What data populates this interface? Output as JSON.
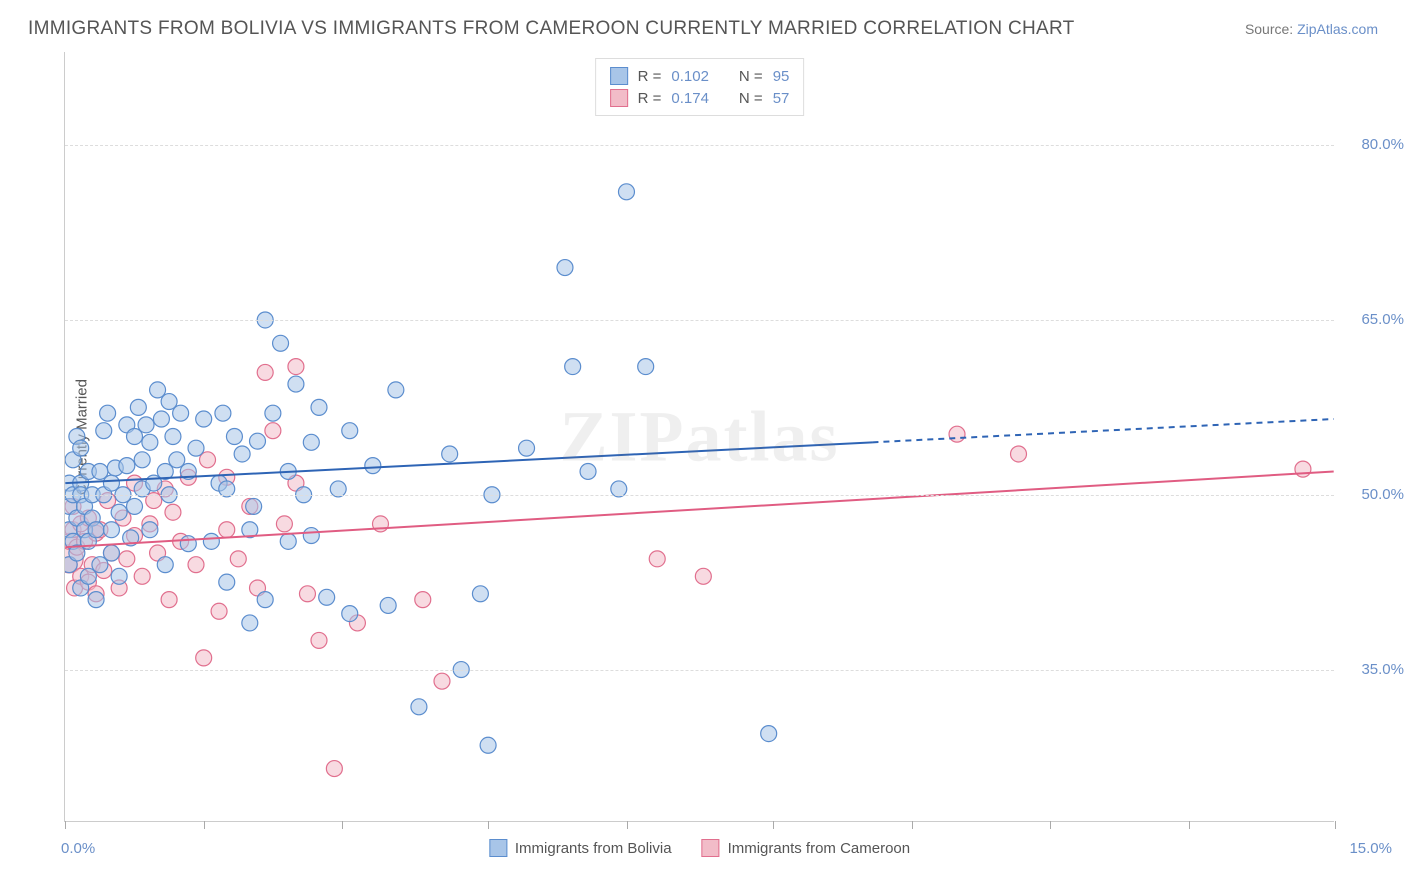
{
  "header": {
    "title": "IMMIGRANTS FROM BOLIVIA VS IMMIGRANTS FROM CAMEROON CURRENTLY MARRIED CORRELATION CHART",
    "source_label": "Source:",
    "source_name": "ZipAtlas.com"
  },
  "watermark": "ZIPatlas",
  "chart": {
    "type": "scatter",
    "xlim": [
      0,
      16.5
    ],
    "ylim": [
      22,
      88
    ],
    "x_tick_positions": [
      0,
      1.8,
      3.6,
      5.5,
      7.3,
      9.2,
      11.0,
      12.8,
      14.6,
      16.5
    ],
    "y_gridlines": [
      35,
      50,
      65,
      80
    ],
    "y_tick_labels": [
      "35.0%",
      "50.0%",
      "65.0%",
      "80.0%"
    ],
    "x_corner_left": "0.0%",
    "x_corner_right": "15.0%",
    "yaxis_title": "Currently Married",
    "background_color": "#ffffff",
    "grid_color": "#dddddd",
    "axis_color": "#cccccc",
    "marker_radius": 8,
    "marker_large_radius": 14,
    "marker_opacity": 0.55,
    "marker_stroke_width": 1.2,
    "line_width": 2,
    "series": [
      {
        "name": "Immigrants from Bolivia",
        "color_fill": "#a8c5e8",
        "color_stroke": "#5b8dce",
        "line_color": "#2e64b5",
        "R": "0.102",
        "N": "95",
        "trend": {
          "x1": 0,
          "y1": 51.0,
          "x2": 10.5,
          "y2": 54.5,
          "x_dash_end": 16.5,
          "y_dash_end": 56.5
        },
        "points": [
          [
            0.05,
            49
          ],
          [
            0.05,
            51
          ],
          [
            0.05,
            47
          ],
          [
            0.05,
            44
          ],
          [
            0.1,
            46
          ],
          [
            0.1,
            50
          ],
          [
            0.1,
            53
          ],
          [
            0.15,
            55
          ],
          [
            0.15,
            48
          ],
          [
            0.15,
            45
          ],
          [
            0.2,
            51
          ],
          [
            0.2,
            42
          ],
          [
            0.2,
            54
          ],
          [
            0.2,
            50
          ],
          [
            0.25,
            47
          ],
          [
            0.25,
            49
          ],
          [
            0.3,
            43
          ],
          [
            0.3,
            52
          ],
          [
            0.3,
            46
          ],
          [
            0.35,
            48
          ],
          [
            0.35,
            50
          ],
          [
            0.4,
            41
          ],
          [
            0.4,
            47
          ],
          [
            0.45,
            52
          ],
          [
            0.45,
            44
          ],
          [
            0.5,
            55.5
          ],
          [
            0.5,
            50
          ],
          [
            0.55,
            57
          ],
          [
            0.6,
            47
          ],
          [
            0.6,
            51
          ],
          [
            0.6,
            45
          ],
          [
            0.65,
            52.3
          ],
          [
            0.7,
            48.5
          ],
          [
            0.7,
            43
          ],
          [
            0.75,
            50
          ],
          [
            0.8,
            56
          ],
          [
            0.8,
            52.5
          ],
          [
            0.85,
            46.3
          ],
          [
            0.9,
            55
          ],
          [
            0.9,
            49
          ],
          [
            0.95,
            57.5
          ],
          [
            1.0,
            53
          ],
          [
            1.0,
            50.5
          ],
          [
            1.05,
            56
          ],
          [
            1.1,
            54.5
          ],
          [
            1.1,
            47
          ],
          [
            1.15,
            51
          ],
          [
            1.2,
            59
          ],
          [
            1.25,
            56.5
          ],
          [
            1.3,
            52
          ],
          [
            1.3,
            44
          ],
          [
            1.35,
            58
          ],
          [
            1.35,
            50
          ],
          [
            1.4,
            55
          ],
          [
            1.45,
            53
          ],
          [
            1.5,
            57
          ],
          [
            1.6,
            52
          ],
          [
            1.6,
            45.8
          ],
          [
            1.7,
            54
          ],
          [
            1.8,
            56.5
          ],
          [
            1.9,
            46
          ],
          [
            2.0,
            51
          ],
          [
            2.05,
            57
          ],
          [
            2.1,
            42.5
          ],
          [
            2.1,
            50.5
          ],
          [
            2.2,
            55
          ],
          [
            2.3,
            53.5
          ],
          [
            2.4,
            47
          ],
          [
            2.4,
            39
          ],
          [
            2.45,
            49
          ],
          [
            2.5,
            54.6
          ],
          [
            2.6,
            65
          ],
          [
            2.6,
            41
          ],
          [
            2.7,
            57
          ],
          [
            2.8,
            63
          ],
          [
            2.9,
            52
          ],
          [
            2.9,
            46
          ],
          [
            3.0,
            59.5
          ],
          [
            3.1,
            50
          ],
          [
            3.2,
            54.5
          ],
          [
            3.2,
            46.5
          ],
          [
            3.3,
            57.5
          ],
          [
            3.4,
            41.2
          ],
          [
            3.55,
            50.5
          ],
          [
            3.7,
            55.5
          ],
          [
            3.7,
            39.8
          ],
          [
            4.0,
            52.5
          ],
          [
            4.2,
            40.5
          ],
          [
            4.3,
            59
          ],
          [
            4.6,
            31.8
          ],
          [
            5.0,
            53.5
          ],
          [
            5.15,
            35
          ],
          [
            5.4,
            41.5
          ],
          [
            5.5,
            28.5
          ],
          [
            5.55,
            50
          ],
          [
            6.0,
            54
          ],
          [
            6.5,
            69.5
          ],
          [
            6.6,
            61
          ],
          [
            6.8,
            52
          ],
          [
            7.2,
            50.5
          ],
          [
            7.3,
            76
          ],
          [
            7.55,
            61
          ],
          [
            9.15,
            29.5
          ]
        ]
      },
      {
        "name": "Immigrants from Cameroon",
        "color_fill": "#f2bcc8",
        "color_stroke": "#e16f8e",
        "line_color": "#e05c82",
        "R": "0.174",
        "N": "57",
        "trend": {
          "x1": 0,
          "y1": 45.5,
          "x2": 16.5,
          "y2": 52.0
        },
        "points": [
          [
            0.05,
            46
          ],
          [
            0.05,
            44
          ],
          [
            0.1,
            47
          ],
          [
            0.1,
            49
          ],
          [
            0.12,
            42
          ],
          [
            0.15,
            45.5
          ],
          [
            0.2,
            47.5
          ],
          [
            0.2,
            43
          ],
          [
            0.25,
            46
          ],
          [
            0.3,
            42.5
          ],
          [
            0.3,
            48
          ],
          [
            0.35,
            44
          ],
          [
            0.4,
            46.7
          ],
          [
            0.4,
            41.5
          ],
          [
            0.45,
            47
          ],
          [
            0.5,
            43.5
          ],
          [
            0.55,
            49.5
          ],
          [
            0.6,
            45
          ],
          [
            0.7,
            42
          ],
          [
            0.75,
            48
          ],
          [
            0.8,
            44.5
          ],
          [
            0.9,
            46.5
          ],
          [
            0.9,
            51
          ],
          [
            1.0,
            43
          ],
          [
            1.1,
            47.5
          ],
          [
            1.15,
            49.5
          ],
          [
            1.2,
            45
          ],
          [
            1.3,
            50.5
          ],
          [
            1.35,
            41
          ],
          [
            1.4,
            48.5
          ],
          [
            1.5,
            46
          ],
          [
            1.6,
            51.5
          ],
          [
            1.7,
            44
          ],
          [
            1.8,
            36
          ],
          [
            1.85,
            53
          ],
          [
            2.0,
            40
          ],
          [
            2.1,
            47
          ],
          [
            2.1,
            51.5
          ],
          [
            2.25,
            44.5
          ],
          [
            2.4,
            49
          ],
          [
            2.5,
            42
          ],
          [
            2.6,
            60.5
          ],
          [
            2.7,
            55.5
          ],
          [
            2.85,
            47.5
          ],
          [
            3.0,
            51
          ],
          [
            3.0,
            61
          ],
          [
            3.15,
            41.5
          ],
          [
            3.3,
            37.5
          ],
          [
            3.5,
            26.5
          ],
          [
            3.8,
            39
          ],
          [
            4.1,
            47.5
          ],
          [
            4.65,
            41
          ],
          [
            4.9,
            34
          ],
          [
            7.7,
            44.5
          ],
          [
            8.3,
            43
          ],
          [
            11.6,
            55.2
          ],
          [
            12.4,
            53.5
          ],
          [
            16.1,
            52.2
          ]
        ],
        "large_points": [
          [
            0.05,
            44.5
          ]
        ]
      }
    ]
  },
  "legend_top": {
    "rows": [
      {
        "swatch_series": 0,
        "r_label": "R =",
        "n_label": "N ="
      },
      {
        "swatch_series": 1,
        "r_label": "R =",
        "n_label": "N ="
      }
    ]
  },
  "legend_bottom": {
    "items": [
      {
        "series": 0
      },
      {
        "series": 1
      }
    ]
  }
}
